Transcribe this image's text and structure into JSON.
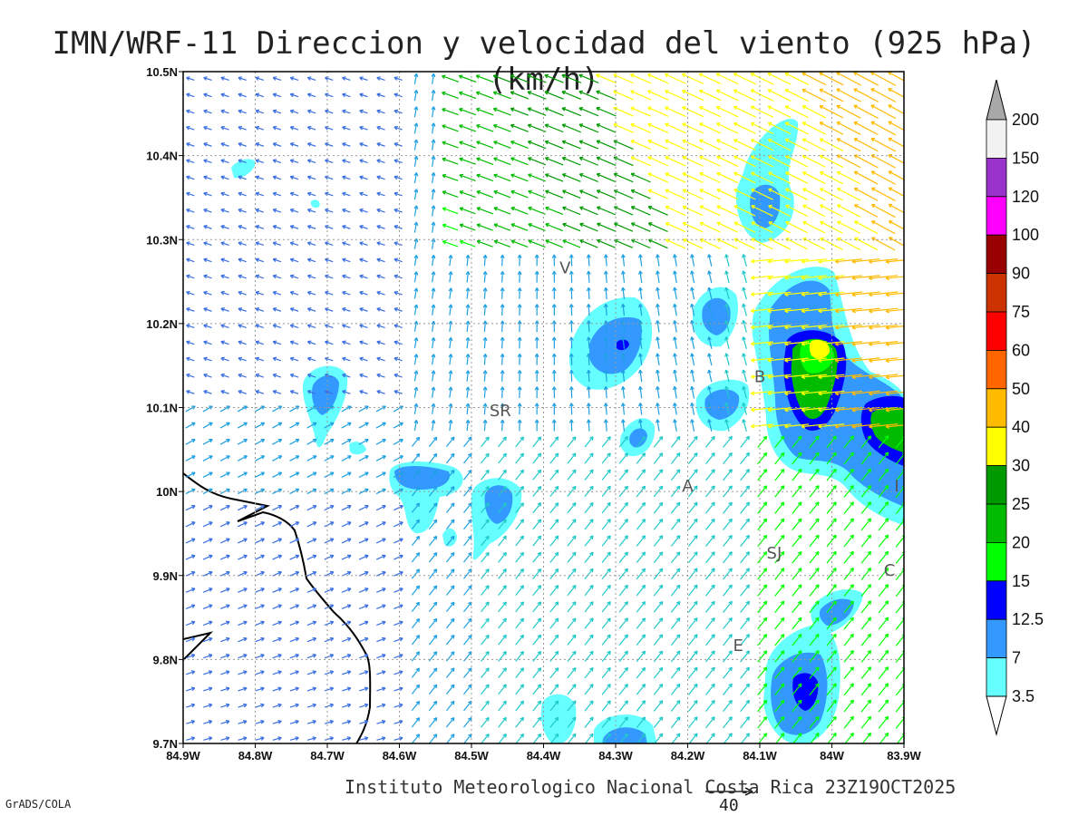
{
  "title": "IMN/WRF-11 Direccion y velocidad del viento (925 hPa)(km/h)",
  "credit": "Instituto Meteorologico Nacional Costa Rica  23Z19OCT2025",
  "software": "GrADS/COLA",
  "reference_vector": {
    "label": "40",
    "value": 40
  },
  "map": {
    "lon_range": [
      -84.9,
      -83.9
    ],
    "lat_range": [
      9.7,
      10.5
    ],
    "x_ticks": [
      "84.9W",
      "84.8W",
      "84.7W",
      "84.6W",
      "84.5W",
      "84.4W",
      "84.3W",
      "84.2W",
      "84.1W",
      "84W",
      "83.9W"
    ],
    "y_ticks": [
      "9.7N",
      "9.8N",
      "9.9N",
      "10N",
      "10.1N",
      "10.2N",
      "10.3N",
      "10.4N",
      "10.5N"
    ],
    "grid": "dotted",
    "places": [
      {
        "name": "V",
        "lon": -84.37,
        "lat": 10.26
      },
      {
        "name": "SR",
        "lon": -84.46,
        "lat": 10.09
      },
      {
        "name": "B",
        "lon": -84.1,
        "lat": 10.13
      },
      {
        "name": "A",
        "lon": -84.2,
        "lat": 10.0
      },
      {
        "name": "I",
        "lon": -83.91,
        "lat": 10.0
      },
      {
        "name": "SJ",
        "lon": -84.08,
        "lat": 9.92
      },
      {
        "name": "C",
        "lon": -83.92,
        "lat": 9.9
      },
      {
        "name": "E",
        "lon": -84.13,
        "lat": 9.81
      }
    ]
  },
  "legend": {
    "labels": [
      "200",
      "150",
      "120",
      "100",
      "90",
      "75",
      "60",
      "50",
      "40",
      "30",
      "25",
      "20",
      "15",
      "12.5",
      "7",
      "3.5"
    ],
    "colors": [
      "#f2f2f2",
      "#9933cc",
      "#ff00ff",
      "#990000",
      "#cc3300",
      "#ff0000",
      "#ff6600",
      "#ffbb00",
      "#ffff00",
      "#009900",
      "#00bb00",
      "#00ff00",
      "#0000ff",
      "#3399ff",
      "#66ffff"
    ],
    "over_color": "#a8a8a8",
    "under_color": "#ffffff"
  }
}
